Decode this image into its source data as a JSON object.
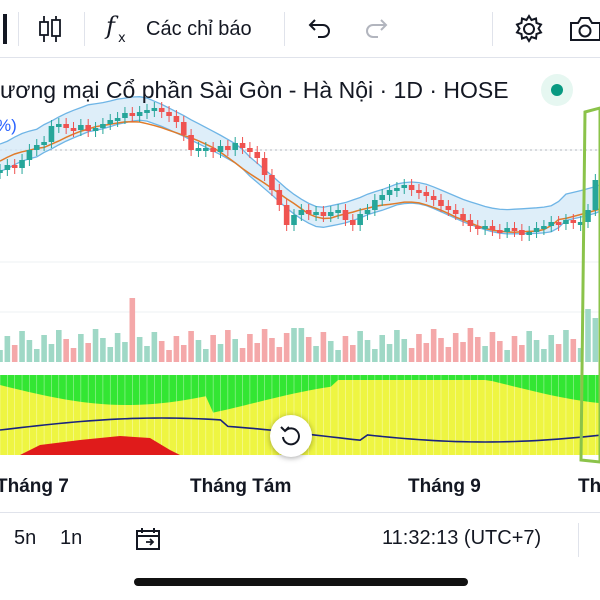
{
  "toolbar": {
    "indicators_label": "Các chỉ báo"
  },
  "header": {
    "symbol_title": "ương mại Cổ phần Sài Gòn - Hà Nội · 1D · HOSE",
    "percent_fragment": "%)"
  },
  "time_axis": {
    "months": [
      "Tháng 7",
      "Tháng Tám",
      "Tháng 9",
      "Th"
    ]
  },
  "bottom_bar": {
    "range_5d": "5n",
    "range_1m": "1n",
    "clock": "11:32:13 (UTC+7)"
  },
  "colors": {
    "up": "#26a69a",
    "down": "#ef5350",
    "band_fill": "#d6eaf8",
    "band_line": "#6fb5e6",
    "ma_line": "#e07b2a",
    "highlight": "#8bc34a",
    "indicator_green": "#33e633",
    "indicator_yellow": "#eef542",
    "indicator_red": "#e01b1b"
  },
  "icons": [
    "candlestick-icon",
    "fx-icon",
    "undo-icon",
    "redo-icon",
    "gear-icon",
    "camera-icon",
    "calendar-icon",
    "reset-icon",
    "live-status-icon"
  ]
}
